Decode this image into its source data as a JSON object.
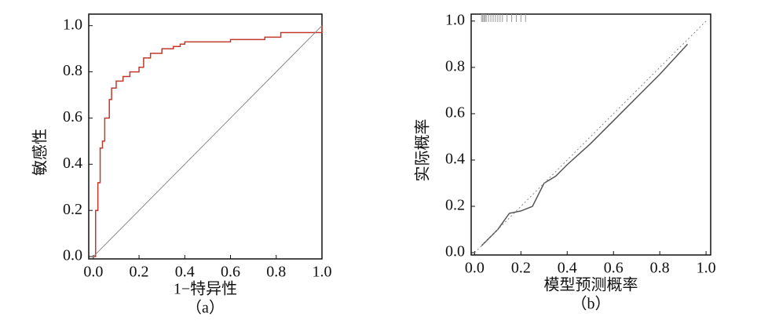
{
  "chart_data": [
    {
      "type": "line",
      "caption": "（a）",
      "xlabel": "1−特异性",
      "ylabel": "敏感性",
      "xlim": [
        -0.02,
        1.0
      ],
      "ylim": [
        -0.01,
        1.05
      ],
      "xticks": [
        {
          "value": 0,
          "label": "0.0"
        },
        0.2,
        0.4,
        0.6,
        0.8,
        {
          "value": 1,
          "label": "1.0"
        }
      ],
      "yticks": [
        {
          "value": 0,
          "label": "0.0"
        },
        0.2,
        0.4,
        0.6,
        0.8,
        {
          "value": 1,
          "label": "1.0"
        }
      ],
      "series": [
        {
          "color": "#c0392b",
          "step": true,
          "x": [
            0,
            0.01,
            0.02,
            0.03,
            0.04,
            0.05,
            0.07,
            0.08,
            0.1,
            0.13,
            0.16,
            0.2,
            0.22,
            0.25,
            0.3,
            0.35,
            0.38,
            0.4,
            0.6,
            0.75,
            0.82,
            1.0
          ],
          "y": [
            0,
            0.2,
            0.32,
            0.47,
            0.5,
            0.6,
            0.68,
            0.73,
            0.76,
            0.78,
            0.8,
            0.82,
            0.86,
            0.88,
            0.9,
            0.91,
            0.92,
            0.93,
            0.94,
            0.95,
            0.97,
            1.0
          ]
        },
        {
          "color": "#888888",
          "x": [
            0,
            1
          ],
          "y": [
            0,
            1
          ]
        }
      ]
    },
    {
      "type": "line",
      "caption": "（b）",
      "xlabel": "模型预测概率",
      "ylabel": "实际概率",
      "xlim": [
        -0.015,
        1.02
      ],
      "ylim": [
        -0.01,
        1.03
      ],
      "xticks": [
        {
          "value": 0,
          "label": "0.0"
        },
        0.2,
        0.4,
        0.6,
        0.8,
        {
          "value": 1,
          "label": "1.0"
        }
      ],
      "yticks": [
        {
          "value": 0,
          "label": "0.0"
        },
        0.2,
        0.4,
        0.6,
        0.8,
        {
          "value": 1,
          "label": "1.0"
        }
      ],
      "series": [
        {
          "color": "#555555",
          "x": [
            0.03,
            0.1,
            0.15,
            0.2,
            0.25,
            0.3,
            0.35,
            0.4,
            0.5,
            0.6,
            0.7,
            0.8,
            0.92
          ],
          "y": [
            0.03,
            0.1,
            0.17,
            0.18,
            0.2,
            0.3,
            0.33,
            0.38,
            0.47,
            0.57,
            0.67,
            0.77,
            0.9
          ]
        },
        {
          "color": "#888888",
          "dotted": true,
          "x": [
            0,
            1
          ],
          "y": [
            0,
            1
          ]
        }
      ],
      "rug": [
        0.03,
        0.035,
        0.04,
        0.045,
        0.05,
        0.06,
        0.07,
        0.08,
        0.09,
        0.1,
        0.11,
        0.12,
        0.14,
        0.16,
        0.18,
        0.2,
        0.22
      ]
    }
  ]
}
